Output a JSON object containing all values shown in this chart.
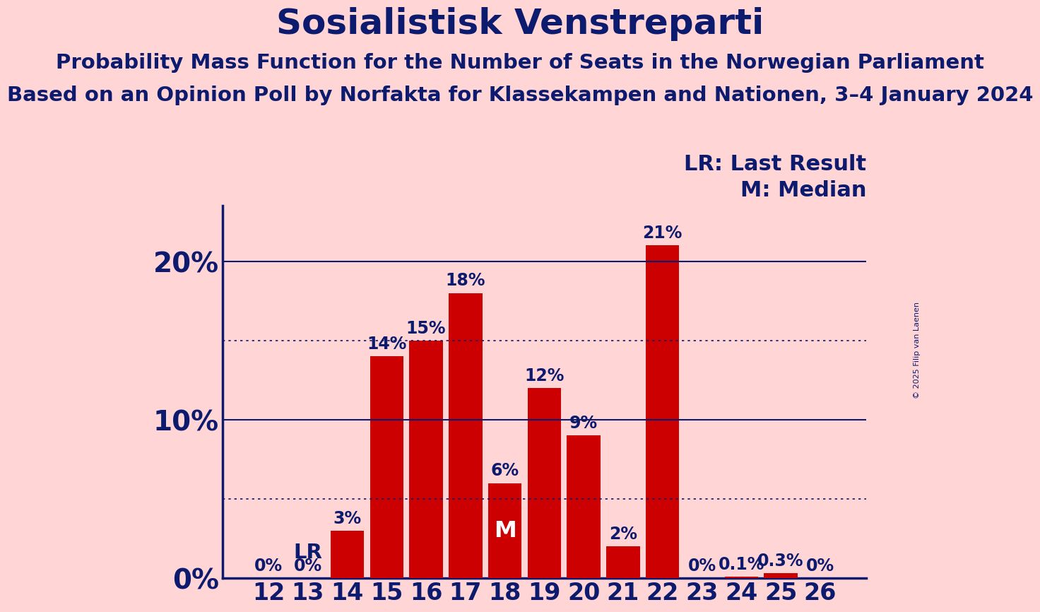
{
  "title": "Sosialistisk Venstreparti",
  "subtitle1": "Probability Mass Function for the Number of Seats in the Norwegian Parliament",
  "subtitle2": "Based on an Opinion Poll by Norfakta for Klassekampen and Nationen, 3–4 January 2024",
  "copyright": "© 2025 Filip van Laenen",
  "seats": [
    12,
    13,
    14,
    15,
    16,
    17,
    18,
    19,
    20,
    21,
    22,
    23,
    24,
    25,
    26
  ],
  "probabilities": [
    0.0,
    0.0,
    3.0,
    14.0,
    15.0,
    18.0,
    6.0,
    12.0,
    9.0,
    2.0,
    21.0,
    0.0,
    0.1,
    0.3,
    0.0
  ],
  "bar_color": "#CC0000",
  "background_color": "#FFD5D5",
  "text_color": "#0D1B6E",
  "lr_seat": 13,
  "median_seat": 18,
  "ylim": [
    0,
    23.5
  ],
  "dotted_lines": [
    5,
    15
  ],
  "solid_lines": [
    10,
    20
  ],
  "legend_lr": "LR: Last Result",
  "legend_m": "M: Median",
  "bar_label_fontsize": 17,
  "title_fontsize": 36,
  "subtitle1_fontsize": 21,
  "subtitle2_fontsize": 21,
  "axis_tick_fontsize": 24,
  "ytick_fontsize": 28,
  "legend_fontsize": 22,
  "copyright_fontsize": 8
}
